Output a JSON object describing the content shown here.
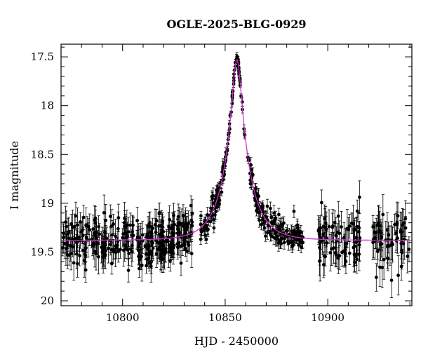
{
  "chart_data": {
    "type": "scatter",
    "title": "OGLE-2025-BLG-0929",
    "xlabel": "HJD - 2450000",
    "ylabel": "I magnitude",
    "xlim": [
      10770,
      10941
    ],
    "ylim": [
      17.37,
      20.05
    ],
    "y_inverted": true,
    "x_ticks": [
      10800,
      10850,
      10900
    ],
    "y_ticks": [
      17.5,
      18,
      18.5,
      19,
      19.5,
      20
    ],
    "x_minor_step": 10,
    "y_minor_step": 0.1,
    "grid": false,
    "colors": {
      "points": "#000000",
      "model": "#d22fd2"
    },
    "model": {
      "name": "",
      "t0": 10855.7,
      "u0": 0.184,
      "tE": 11.6,
      "baseline": 19.38
    },
    "data_segments": [
      {
        "x_start": 10770,
        "x_end": 10810,
        "n": 160,
        "scatter": 0.13,
        "err": 0.13
      },
      {
        "x_start": 10811,
        "x_end": 10834,
        "n": 150,
        "scatter": 0.12,
        "err": 0.12
      },
      {
        "x_start": 10838,
        "x_end": 10888,
        "n": 270,
        "scatter": 0.07,
        "err": 0.06
      },
      {
        "x_start": 10895,
        "x_end": 10916,
        "n": 80,
        "scatter": 0.14,
        "err": 0.15
      },
      {
        "x_start": 10922,
        "x_end": 10940,
        "n": 60,
        "scatter": 0.14,
        "err": 0.15
      }
    ]
  }
}
